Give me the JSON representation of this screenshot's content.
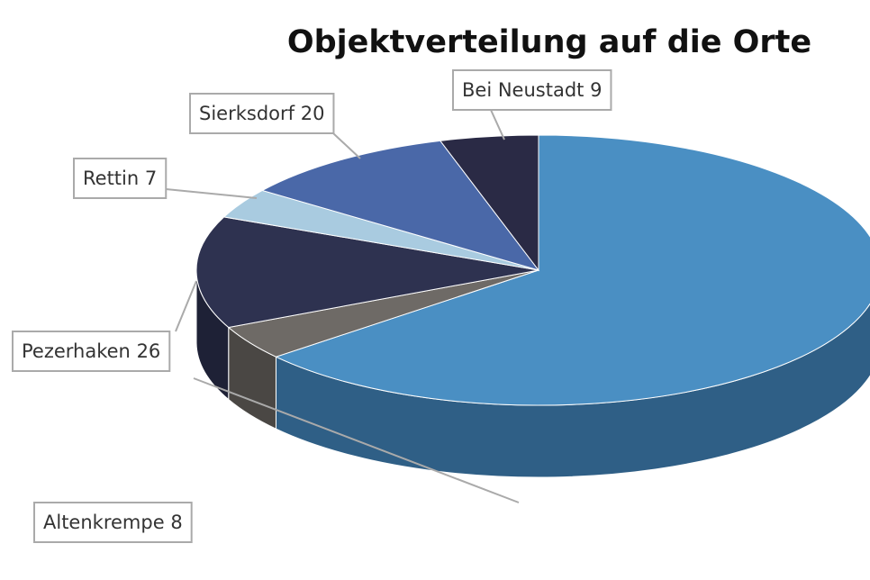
{
  "chart_data": {
    "type": "pie3d",
    "title": "Objektverteilung auf die Orte",
    "categories": [
      null,
      "Altenkrempe",
      "Pezerhaken",
      "Rettin",
      "Sierksdorf",
      "Bei Neustadt"
    ],
    "values": [
      124,
      8,
      26,
      7,
      20,
      9
    ],
    "colors": [
      "#4a8fc3",
      "#6e6a66",
      "#2e3250",
      "#a9cbe0",
      "#4a68a8",
      "#2a2a45"
    ],
    "side_colors": [
      "#2f5f86",
      "#4a4744",
      "#1e2136",
      "#7f9fb3",
      "#324a7c",
      "#1b1b2e"
    ]
  }
}
